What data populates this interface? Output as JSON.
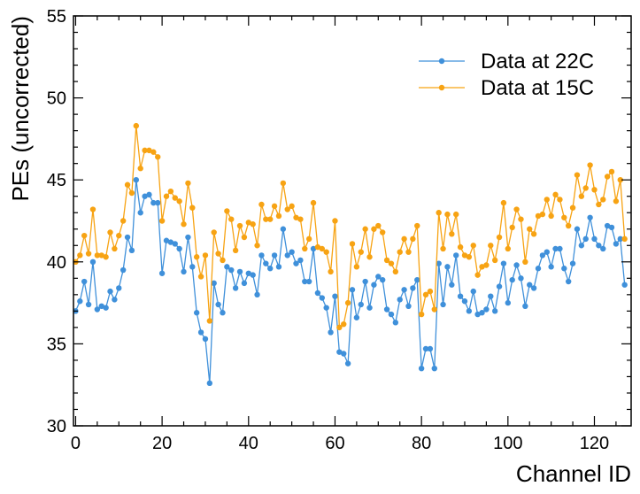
{
  "chart_data": {
    "type": "line",
    "title": "",
    "xlabel": "Channel ID",
    "ylabel": "PEs (uncorrected)",
    "xlim": [
      -0.5,
      128.5
    ],
    "ylim": [
      30,
      55
    ],
    "xticks": [
      0,
      20,
      40,
      60,
      80,
      100,
      120
    ],
    "yticks": [
      30,
      35,
      40,
      45,
      50,
      55
    ],
    "legend_position": "upper-right",
    "grid": false,
    "series": [
      {
        "name": "Data at 22C",
        "color": "#3f90da",
        "x": [
          0,
          1,
          2,
          3,
          4,
          5,
          6,
          7,
          8,
          9,
          10,
          11,
          12,
          13,
          14,
          15,
          16,
          17,
          18,
          19,
          20,
          21,
          22,
          23,
          24,
          25,
          26,
          27,
          28,
          29,
          30,
          31,
          32,
          33,
          34,
          35,
          36,
          37,
          38,
          39,
          40,
          41,
          42,
          43,
          44,
          45,
          46,
          47,
          48,
          49,
          50,
          51,
          52,
          53,
          54,
          55,
          56,
          57,
          58,
          59,
          60,
          61,
          62,
          63,
          64,
          65,
          66,
          67,
          68,
          69,
          70,
          71,
          72,
          73,
          74,
          75,
          76,
          77,
          78,
          79,
          80,
          81,
          82,
          83,
          84,
          85,
          86,
          87,
          88,
          89,
          90,
          91,
          92,
          93,
          94,
          95,
          96,
          97,
          98,
          99,
          100,
          101,
          102,
          103,
          104,
          105,
          106,
          107,
          108,
          109,
          110,
          111,
          112,
          113,
          114,
          115,
          116,
          117,
          118,
          119,
          120,
          121,
          122,
          123,
          124,
          125,
          126,
          127
        ],
        "values": [
          37.0,
          37.6,
          38.8,
          37.4,
          40.0,
          37.1,
          37.3,
          37.2,
          38.2,
          37.7,
          38.4,
          39.5,
          41.5,
          40.7,
          45.0,
          43.0,
          44.0,
          44.1,
          43.6,
          43.6,
          39.3,
          41.3,
          41.2,
          41.1,
          40.8,
          39.4,
          41.5,
          39.7,
          36.9,
          35.7,
          35.3,
          32.6,
          38.7,
          37.4,
          36.9,
          39.7,
          39.5,
          38.4,
          39.4,
          38.7,
          39.3,
          39.2,
          38.0,
          40.4,
          39.9,
          39.6,
          40.4,
          39.7,
          42.0,
          40.4,
          40.6,
          39.9,
          40.1,
          38.8,
          38.8,
          40.8,
          38.1,
          37.8,
          37.2,
          35.7,
          37.9,
          34.5,
          34.4,
          33.8,
          38.3,
          36.6,
          37.4,
          38.8,
          37.2,
          38.6,
          39.1,
          38.9,
          37.1,
          36.8,
          36.3,
          37.7,
          38.3,
          37.3,
          38.4,
          38.9,
          33.5,
          34.7,
          34.7,
          33.5,
          39.9,
          37.4,
          39.7,
          38.6,
          40.4,
          37.9,
          37.6,
          37.0,
          38.2,
          36.8,
          36.9,
          37.1,
          37.9,
          37.0,
          38.5,
          39.9,
          37.5,
          38.9,
          39.8,
          39.0,
          37.3,
          38.6,
          38.4,
          39.6,
          40.4,
          40.6,
          39.7,
          40.8,
          40.8,
          39.6,
          38.8,
          39.9,
          42.0,
          41.0,
          41.4,
          42.7,
          41.4,
          41.0,
          40.8,
          42.2,
          42.1,
          41.1,
          41.4,
          38.6
        ]
      },
      {
        "name": "Data at 15C",
        "color": "#f7a313",
        "x": [
          0,
          1,
          2,
          3,
          4,
          5,
          6,
          7,
          8,
          9,
          10,
          11,
          12,
          13,
          14,
          15,
          16,
          17,
          18,
          19,
          20,
          21,
          22,
          23,
          24,
          25,
          26,
          27,
          28,
          29,
          30,
          31,
          32,
          33,
          34,
          35,
          36,
          37,
          38,
          39,
          40,
          41,
          42,
          43,
          44,
          45,
          46,
          47,
          48,
          49,
          50,
          51,
          52,
          53,
          54,
          55,
          56,
          57,
          58,
          59,
          60,
          61,
          62,
          63,
          64,
          65,
          66,
          67,
          68,
          69,
          70,
          71,
          72,
          73,
          74,
          75,
          76,
          77,
          78,
          79,
          80,
          81,
          82,
          83,
          84,
          85,
          86,
          87,
          88,
          89,
          90,
          91,
          92,
          93,
          94,
          95,
          96,
          97,
          98,
          99,
          100,
          101,
          102,
          103,
          104,
          105,
          106,
          107,
          108,
          109,
          110,
          111,
          112,
          113,
          114,
          115,
          116,
          117,
          118,
          119,
          120,
          121,
          122,
          123,
          124,
          125,
          126,
          127
        ],
        "values": [
          40.0,
          40.4,
          41.6,
          40.5,
          43.2,
          40.4,
          40.4,
          40.3,
          41.8,
          40.8,
          41.6,
          42.5,
          44.7,
          44.2,
          48.3,
          45.7,
          46.8,
          46.8,
          46.7,
          46.4,
          42.5,
          44.0,
          44.3,
          43.9,
          43.7,
          42.3,
          44.8,
          43.3,
          40.3,
          39.1,
          40.4,
          36.4,
          41.8,
          40.5,
          40.1,
          43.1,
          42.6,
          40.7,
          42.2,
          41.5,
          42.4,
          42.3,
          41.0,
          43.5,
          42.6,
          42.6,
          43.4,
          42.8,
          44.8,
          43.2,
          43.4,
          42.7,
          42.6,
          40.8,
          41.4,
          43.6,
          40.9,
          40.8,
          40.6,
          39.4,
          42.5,
          36.0,
          36.2,
          37.5,
          41.1,
          39.7,
          40.6,
          42.0,
          40.3,
          42.0,
          42.2,
          41.8,
          40.1,
          39.9,
          39.4,
          40.6,
          41.4,
          40.6,
          41.4,
          42.2,
          36.8,
          38.0,
          38.2,
          37.1,
          43.0,
          40.8,
          42.9,
          41.7,
          42.9,
          40.9,
          40.4,
          40.3,
          41.0,
          39.2,
          39.7,
          39.8,
          41.0,
          40.1,
          41.5,
          43.6,
          40.8,
          42.1,
          43.2,
          42.6,
          40.0,
          42.0,
          41.7,
          42.8,
          42.9,
          43.8,
          42.8,
          44.1,
          43.8,
          42.7,
          42.2,
          43.3,
          45.3,
          44.0,
          44.5,
          45.9,
          44.4,
          43.5,
          43.8,
          45.2,
          45.5,
          43.7,
          45.0,
          41.4
        ]
      }
    ]
  }
}
